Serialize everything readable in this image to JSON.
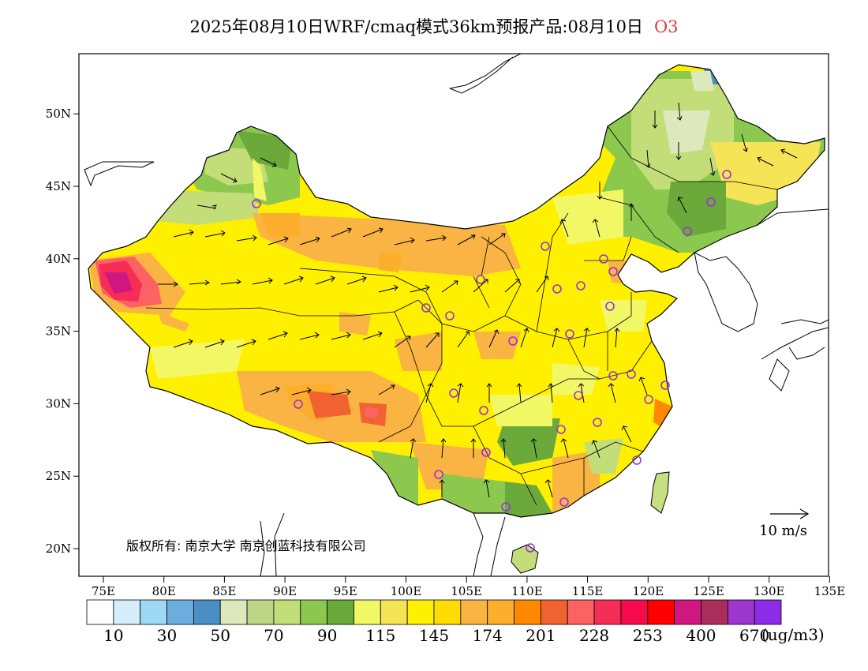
{
  "title": {
    "main": "2025年08月10日WRF/cmaq模式36km预报产品:08月10日",
    "species": "O3"
  },
  "map": {
    "lon_labels": [
      "75E",
      "80E",
      "85E",
      "90E",
      "95E",
      "100E",
      "105E",
      "110E",
      "115E",
      "120E",
      "125E",
      "130E",
      "135E"
    ],
    "lat_labels": [
      "20N",
      "25N",
      "30N",
      "35N",
      "40N",
      "45N",
      "50N"
    ],
    "copyright": "版权所有: 南京大学 南京创蓝科技有限公司",
    "wind_reference": "10 m/s"
  },
  "colorbar": {
    "colors": [
      "#ffffff",
      "#d4eefb",
      "#9ed8f5",
      "#6baede",
      "#4a8fc4",
      "#dde8bc",
      "#bed586",
      "#c3de79",
      "#8cc84e",
      "#6aa93a",
      "#f2f766",
      "#f6e457",
      "#fff000",
      "#ffdd00",
      "#f9b443",
      "#fdae2c",
      "#ff8800",
      "#f0622f",
      "#fd6262",
      "#f62d57",
      "#f50a4b",
      "#ff0000",
      "#d0167f",
      "#aa2e5a",
      "#9c36cc",
      "#8c2be8"
    ],
    "labels": [
      "10",
      "30",
      "50",
      "70",
      "90",
      "115",
      "145",
      "174",
      "201",
      "228",
      "253",
      "400",
      "670"
    ],
    "unit": "(ug/m3)"
  },
  "colors": {
    "station_marker": "#9c2fe0",
    "title_species": "#e53a3a"
  }
}
